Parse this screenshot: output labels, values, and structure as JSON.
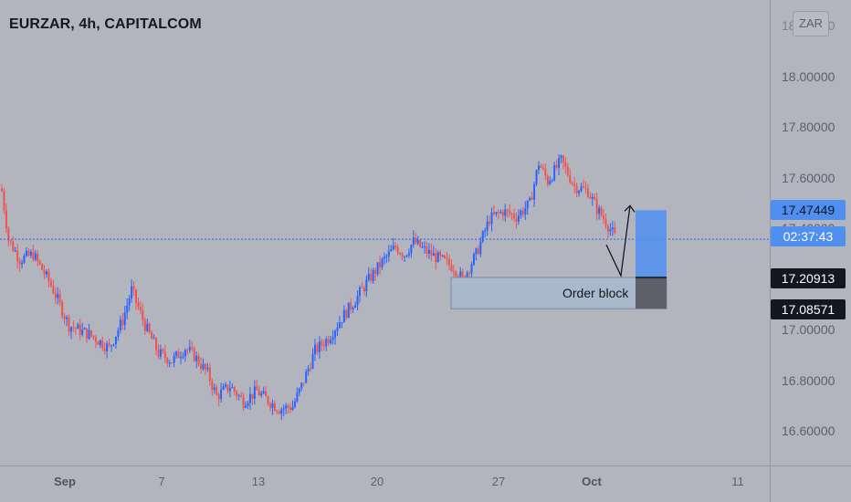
{
  "header": {
    "title": "EURZAR, 4h, CAPITALCOM"
  },
  "currency_button": {
    "label": "ZAR"
  },
  "annotations": {
    "order_block": "Order block"
  },
  "price_labels": {
    "target": {
      "price": "17.47449",
      "bg": "#4f8ff0",
      "fg": "#131722"
    },
    "countdown": {
      "value": "02:37:43",
      "bg": "#4f8ff0",
      "fg": "#ffffff"
    },
    "entry": {
      "price": "17.20913",
      "bg": "#131722",
      "fg": "#ffffff"
    },
    "stop": {
      "price": "17.08571",
      "bg": "#131722",
      "fg": "#ffffff"
    }
  },
  "colors": {
    "up": "#2962ff",
    "down": "#ef5350",
    "background": "#b2b5be",
    "current_price_line": "#2962ff"
  },
  "chart_data": {
    "type": "candlestick",
    "title": "EURZAR, 4h, CAPITALCOM",
    "y_ticks": [
      "16.60000",
      "16.80000",
      "17.00000",
      "17.20000",
      "17.40000",
      "17.60000",
      "17.80000",
      "18.00000",
      "18.20000"
    ],
    "x_ticks": [
      {
        "label": "Sep",
        "bold": true
      },
      {
        "label": "7",
        "bold": false
      },
      {
        "label": "13",
        "bold": false
      },
      {
        "label": "20",
        "bold": false
      },
      {
        "label": "27",
        "bold": false
      },
      {
        "label": "Oct",
        "bold": true
      },
      {
        "label": "11",
        "bold": false
      }
    ],
    "ylim": [
      16.5,
      18.25
    ],
    "last_price": 17.36,
    "order_block": {
      "top": 17.2091,
      "bottom": 17.0857
    },
    "projection": {
      "entry": 17.2091,
      "target": 17.4745,
      "stop": 17.0857
    },
    "path": [
      [
        0,
        17.55
      ],
      [
        3,
        17.36
      ],
      [
        8,
        17.28
      ],
      [
        14,
        17.3
      ],
      [
        22,
        17.18
      ],
      [
        30,
        17.02
      ],
      [
        40,
        16.98
      ],
      [
        48,
        16.93
      ],
      [
        54,
        17.04
      ],
      [
        58,
        17.16
      ],
      [
        64,
        17.02
      ],
      [
        70,
        16.91
      ],
      [
        76,
        16.88
      ],
      [
        82,
        16.93
      ],
      [
        86,
        16.9
      ],
      [
        92,
        16.83
      ],
      [
        96,
        16.74
      ],
      [
        102,
        16.78
      ],
      [
        108,
        16.72
      ],
      [
        114,
        16.76
      ],
      [
        118,
        16.73
      ],
      [
        124,
        16.69
      ],
      [
        130,
        16.7
      ],
      [
        134,
        16.78
      ],
      [
        140,
        16.92
      ],
      [
        146,
        16.97
      ],
      [
        152,
        17.05
      ],
      [
        158,
        17.12
      ],
      [
        164,
        17.2
      ],
      [
        170,
        17.27
      ],
      [
        176,
        17.33
      ],
      [
        180,
        17.3
      ],
      [
        184,
        17.35
      ],
      [
        190,
        17.31
      ],
      [
        196,
        17.28
      ],
      [
        202,
        17.25
      ],
      [
        206,
        17.2
      ],
      [
        212,
        17.3
      ],
      [
        218,
        17.44
      ],
      [
        224,
        17.47
      ],
      [
        230,
        17.45
      ],
      [
        236,
        17.5
      ],
      [
        240,
        17.66
      ],
      [
        244,
        17.59
      ],
      [
        250,
        17.67
      ],
      [
        256,
        17.57
      ],
      [
        262,
        17.55
      ],
      [
        266,
        17.48
      ],
      [
        270,
        17.43
      ],
      [
        274,
        17.37
      ]
    ],
    "index_range": [
      0,
      274
    ]
  }
}
